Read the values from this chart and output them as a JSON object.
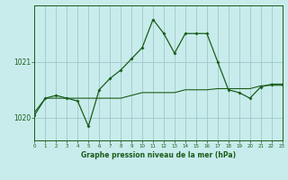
{
  "title": "Graphe pression niveau de la mer (hPa)",
  "background_color": "#c8ecec",
  "grid_color": "#a0c8c8",
  "line_color": "#1a5c1a",
  "x_min": 0,
  "x_max": 23,
  "y_min": 1019.6,
  "y_max": 1022.0,
  "y_ticks": [
    1020,
    1021
  ],
  "x_ticks": [
    0,
    1,
    2,
    3,
    4,
    5,
    6,
    7,
    8,
    9,
    10,
    11,
    12,
    13,
    14,
    15,
    16,
    17,
    18,
    19,
    20,
    21,
    22,
    23
  ],
  "series1_x": [
    0,
    1,
    2,
    3,
    4,
    5,
    6,
    7,
    8,
    9,
    10,
    11,
    12,
    13,
    14,
    15,
    16,
    17,
    18,
    19,
    20,
    21,
    22,
    23
  ],
  "series1_y": [
    1020.05,
    1020.35,
    1020.4,
    1020.35,
    1020.3,
    1019.85,
    1020.5,
    1020.7,
    1020.85,
    1021.05,
    1021.25,
    1021.75,
    1021.5,
    1021.15,
    1021.5,
    1021.5,
    1021.5,
    1021.0,
    1020.5,
    1020.45,
    1020.35,
    1020.55,
    1020.6,
    1020.6
  ],
  "series2_x": [
    0,
    1,
    2,
    3,
    4,
    5,
    6,
    7,
    8,
    9,
    10,
    11,
    12,
    13,
    14,
    15,
    16,
    17,
    18,
    19,
    20,
    21,
    22,
    23
  ],
  "series2_y": [
    1020.1,
    1020.35,
    1020.35,
    1020.35,
    1020.35,
    1020.35,
    1020.35,
    1020.35,
    1020.35,
    1020.4,
    1020.45,
    1020.45,
    1020.45,
    1020.45,
    1020.5,
    1020.5,
    1020.5,
    1020.52,
    1020.52,
    1020.52,
    1020.52,
    1020.57,
    1020.58,
    1020.58
  ],
  "figwidth": 3.2,
  "figheight": 2.0,
  "dpi": 100
}
